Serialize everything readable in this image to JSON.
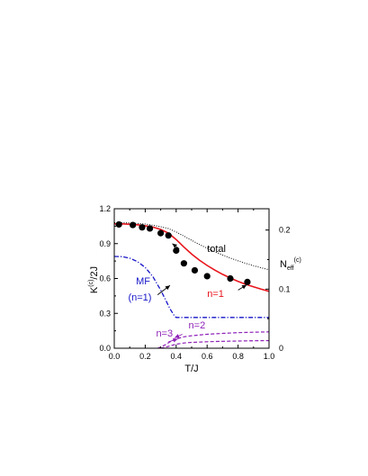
{
  "chart_data": {
    "type": "line",
    "xlabel": "T/J",
    "ylabel": "K(c)/2J",
    "ylabel_main": "K",
    "ylabel_sup": "(c)",
    "ylabel_tail": "/2J",
    "y2label": "Neff(c)",
    "y2label_main": "N",
    "y2label_sub": "eff",
    "y2label_sup": "(c)",
    "xlim": [
      0.0,
      1.0
    ],
    "ylim": [
      0.0,
      1.2
    ],
    "y2lim": [
      0.0,
      0.236
    ],
    "xticks": [
      "0.0",
      "0.2",
      "0.4",
      "0.6",
      "0.8",
      "1.0"
    ],
    "yticks": [
      "0.0",
      "0.3",
      "0.6",
      "0.9",
      "1.2"
    ],
    "y2ticks": [
      "0",
      "0.1",
      "0.2"
    ],
    "grid": false,
    "series": [
      {
        "name": "n=1",
        "style": "solid",
        "color": "#e8141b",
        "x": [
          0.0,
          0.05,
          0.1,
          0.15,
          0.2,
          0.25,
          0.3,
          0.35,
          0.4,
          0.45,
          0.5,
          0.55,
          0.6,
          0.65,
          0.7,
          0.75,
          0.8,
          0.85,
          0.9,
          0.95,
          1.0
        ],
        "y": [
          1.07,
          1.07,
          1.067,
          1.062,
          1.054,
          1.042,
          1.022,
          0.99,
          0.935,
          0.87,
          0.81,
          0.758,
          0.712,
          0.672,
          0.636,
          0.604,
          0.575,
          0.55,
          0.528,
          0.508,
          0.49
        ]
      },
      {
        "name": "total",
        "style": "dotted",
        "color": "#000000",
        "x": [
          0.0,
          0.05,
          0.1,
          0.15,
          0.2,
          0.25,
          0.3,
          0.35,
          0.4,
          0.45,
          0.5,
          0.55,
          0.6,
          0.65,
          0.7,
          0.75,
          0.8,
          0.85,
          0.9,
          0.95,
          1.0
        ],
        "y": [
          1.08,
          1.08,
          1.078,
          1.074,
          1.068,
          1.058,
          1.045,
          1.03,
          1.0,
          0.965,
          0.928,
          0.893,
          0.86,
          0.83,
          0.802,
          0.776,
          0.752,
          0.73,
          0.71,
          0.692,
          0.676
        ]
      },
      {
        "name": "MF (n=1)",
        "style": "dashdot",
        "color": "#1515c8",
        "x": [
          0.0,
          0.05,
          0.1,
          0.15,
          0.2,
          0.25,
          0.3,
          0.33,
          0.36,
          0.39,
          0.4,
          0.5,
          0.6,
          0.7,
          0.8,
          0.9,
          1.0
        ],
        "y": [
          0.79,
          0.788,
          0.775,
          0.745,
          0.695,
          0.615,
          0.5,
          0.42,
          0.34,
          0.275,
          0.265,
          0.265,
          0.265,
          0.265,
          0.265,
          0.265,
          0.265
        ]
      },
      {
        "name": "n=2",
        "style": "dashed",
        "color": "#8e1fb7",
        "x": [
          0.28,
          0.3,
          0.33,
          0.36,
          0.4,
          0.45,
          0.5,
          0.6,
          0.7,
          0.8,
          0.9,
          1.0
        ],
        "y": [
          0.0,
          0.01,
          0.03,
          0.055,
          0.08,
          0.098,
          0.108,
          0.12,
          0.128,
          0.134,
          0.138,
          0.141
        ]
      },
      {
        "name": "n=3",
        "style": "dashed",
        "color": "#8e1fb7",
        "x": [
          0.3,
          0.33,
          0.36,
          0.4,
          0.45,
          0.5,
          0.6,
          0.7,
          0.8,
          0.9,
          1.0
        ],
        "y": [
          0.0,
          0.008,
          0.02,
          0.035,
          0.045,
          0.05,
          0.056,
          0.06,
          0.062,
          0.064,
          0.066
        ]
      }
    ],
    "points": {
      "name": "data",
      "color": "#000000",
      "x": [
        0.03,
        0.12,
        0.18,
        0.23,
        0.3,
        0.35,
        0.4,
        0.45,
        0.52,
        0.6,
        0.75,
        0.86
      ],
      "y": [
        1.065,
        1.06,
        1.04,
        1.03,
        0.99,
        0.97,
        0.84,
        0.73,
        0.67,
        0.62,
        0.6,
        0.57
      ]
    },
    "annotations": [
      {
        "text": "total",
        "x": 0.6,
        "y": 0.83,
        "color": "#000000"
      },
      {
        "text": "n=1",
        "x": 0.6,
        "y": 0.44,
        "color": "#e8141b"
      },
      {
        "text": "MF",
        "x": 0.14,
        "y": 0.55,
        "color": "#1515c8"
      },
      {
        "text": "(n=1)",
        "x": 0.09,
        "y": 0.41,
        "color": "#1515c8"
      },
      {
        "text": "n=2",
        "x": 0.48,
        "y": 0.17,
        "color": "#8e1fb7"
      },
      {
        "text": "n=3",
        "x": 0.27,
        "y": 0.1,
        "color": "#8e1fb7"
      }
    ],
    "arrows": [
      {
        "from": [
          0.42,
          0.855
        ],
        "to": [
          0.375,
          0.9
        ],
        "color": "#000000"
      },
      {
        "from": [
          0.8,
          0.5
        ],
        "to": [
          0.855,
          0.545
        ],
        "color": "#000000"
      },
      {
        "from": [
          0.28,
          0.46
        ],
        "to": [
          0.36,
          0.54
        ],
        "color": "#000000"
      },
      {
        "from": [
          0.44,
          0.12
        ],
        "to": [
          0.39,
          0.09
        ],
        "color": "#8e1fb7"
      },
      {
        "from": [
          0.35,
          0.055
        ],
        "to": [
          0.41,
          0.08
        ],
        "color": "#8e1fb7"
      }
    ]
  }
}
